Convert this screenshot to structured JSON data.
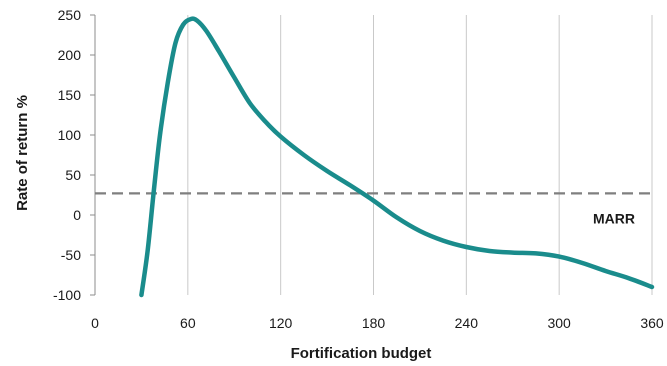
{
  "chart_data": {
    "type": "line",
    "title": "",
    "xlabel": "Fortification budget",
    "ylabel": "Rate of return %",
    "xlim": [
      0,
      360
    ],
    "ylim": [
      -100,
      250
    ],
    "x_ticks": [
      0,
      60,
      120,
      180,
      240,
      300,
      360
    ],
    "y_ticks": [
      -100,
      -50,
      0,
      50,
      100,
      150,
      200,
      250
    ],
    "x_tick_labels": [
      "0",
      "60",
      "120",
      "180",
      "240",
      "300",
      "360"
    ],
    "y_tick_labels": [
      "-100",
      "-50",
      "0",
      "50",
      "100",
      "150",
      "200",
      "250"
    ],
    "grid": "vertical",
    "series": [
      {
        "color": "#1a8c8c",
        "x": [
          30,
          34,
          38,
          42,
          47,
          52,
          57,
          62,
          66,
          72,
          80,
          90,
          100,
          110,
          120,
          135,
          150,
          165,
          180,
          195,
          210,
          225,
          240,
          255,
          270,
          285,
          300,
          315,
          330,
          345,
          360
        ],
        "y": [
          -100,
          -45,
          30,
          100,
          165,
          215,
          238,
          245,
          243,
          230,
          205,
          172,
          140,
          117,
          98,
          75,
          55,
          37,
          18,
          -3,
          -20,
          -32,
          -40,
          -45,
          -47,
          -48,
          -52,
          -60,
          -70,
          -79,
          -90
        ]
      }
    ],
    "reference_lines": [
      {
        "label": "MARR",
        "y": 27,
        "style": "dashed",
        "color": "#7f7f7f"
      }
    ]
  }
}
